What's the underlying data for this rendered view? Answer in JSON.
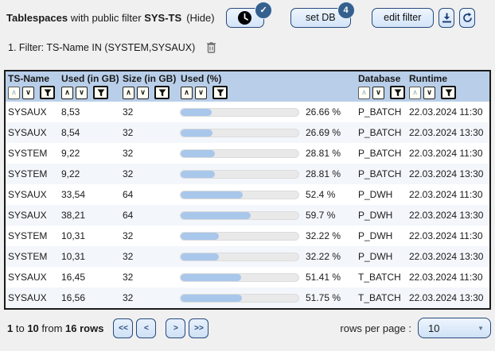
{
  "header": {
    "app_title": "Tablespaces",
    "subtitle": "with public filter",
    "public_filter_name": "SYS-TS",
    "hide_label": "(Hide)",
    "clock_badge_check": "✓",
    "set_db_label": "set DB",
    "set_db_badge": "4",
    "edit_filter_label": "edit filter"
  },
  "filter_line": {
    "text": "1. Filter: TS-Name IN (SYSTEM,SYSAUX)"
  },
  "table": {
    "sort_asc_glyph": "∧",
    "sort_desc_glyph": "∨",
    "columns": [
      {
        "label": "TS-Name",
        "sort_asc_disabled": true
      },
      {
        "label": "Used (in GB)",
        "sort_asc_disabled": false
      },
      {
        "label": "Size (in GB)",
        "sort_asc_disabled": false
      },
      {
        "label": "Used (%)",
        "sort_asc_disabled": false
      },
      {
        "label": "Database",
        "sort_asc_disabled": true
      },
      {
        "label": "Runtime",
        "sort_asc_disabled": true
      }
    ],
    "rows": [
      {
        "ts_name": "SYSAUX",
        "used_gb": "8,53",
        "size_gb": "32",
        "used_pct": 26.66,
        "used_pct_label": "26.66 %",
        "database": "P_BATCH",
        "runtime": "22.03.2024 11:30"
      },
      {
        "ts_name": "SYSAUX",
        "used_gb": "8,54",
        "size_gb": "32",
        "used_pct": 26.69,
        "used_pct_label": "26.69 %",
        "database": "P_BATCH",
        "runtime": "22.03.2024 13:30"
      },
      {
        "ts_name": "SYSTEM",
        "used_gb": "9,22",
        "size_gb": "32",
        "used_pct": 28.81,
        "used_pct_label": "28.81 %",
        "database": "P_BATCH",
        "runtime": "22.03.2024 11:30"
      },
      {
        "ts_name": "SYSTEM",
        "used_gb": "9,22",
        "size_gb": "32",
        "used_pct": 28.81,
        "used_pct_label": "28.81 %",
        "database": "P_BATCH",
        "runtime": "22.03.2024 13:30"
      },
      {
        "ts_name": "SYSAUX",
        "used_gb": "33,54",
        "size_gb": "64",
        "used_pct": 52.4,
        "used_pct_label": "52.4 %",
        "database": "P_DWH",
        "runtime": "22.03.2024 11:30"
      },
      {
        "ts_name": "SYSAUX",
        "used_gb": "38,21",
        "size_gb": "64",
        "used_pct": 59.7,
        "used_pct_label": "59.7 %",
        "database": "P_DWH",
        "runtime": "22.03.2024 13:30"
      },
      {
        "ts_name": "SYSTEM",
        "used_gb": "10,31",
        "size_gb": "32",
        "used_pct": 32.22,
        "used_pct_label": "32.22 %",
        "database": "P_DWH",
        "runtime": "22.03.2024 11:30"
      },
      {
        "ts_name": "SYSTEM",
        "used_gb": "10,31",
        "size_gb": "32",
        "used_pct": 32.22,
        "used_pct_label": "32.22 %",
        "database": "P_DWH",
        "runtime": "22.03.2024 13:30"
      },
      {
        "ts_name": "SYSAUX",
        "used_gb": "16,45",
        "size_gb": "32",
        "used_pct": 51.41,
        "used_pct_label": "51.41 %",
        "database": "T_BATCH",
        "runtime": "22.03.2024 11:30"
      },
      {
        "ts_name": "SYSAUX",
        "used_gb": "16,56",
        "size_gb": "32",
        "used_pct": 51.75,
        "used_pct_label": "51.75 %",
        "database": "T_BATCH",
        "runtime": "22.03.2024 13:30"
      }
    ]
  },
  "footer": {
    "range_start": "1",
    "to_label": "to",
    "range_end": "10",
    "from_label": "from",
    "total_rows": "16 rows",
    "pagination": {
      "first": "<<",
      "prev": "<",
      "next": ">",
      "last": ">>"
    },
    "rows_per_page_label": "rows per page :",
    "rows_per_page_value": "10",
    "dropdown_caret": "▼"
  },
  "colors": {
    "accent_navy": "#27497b",
    "badge_blue": "#35608e",
    "header_row_bg": "#b9cfe9",
    "bar_fill": "#a9c7eb",
    "bar_track": "#e9e9e9",
    "alt_row_bg": "#f3f6fb",
    "page_bg": "#f0f0f0"
  }
}
